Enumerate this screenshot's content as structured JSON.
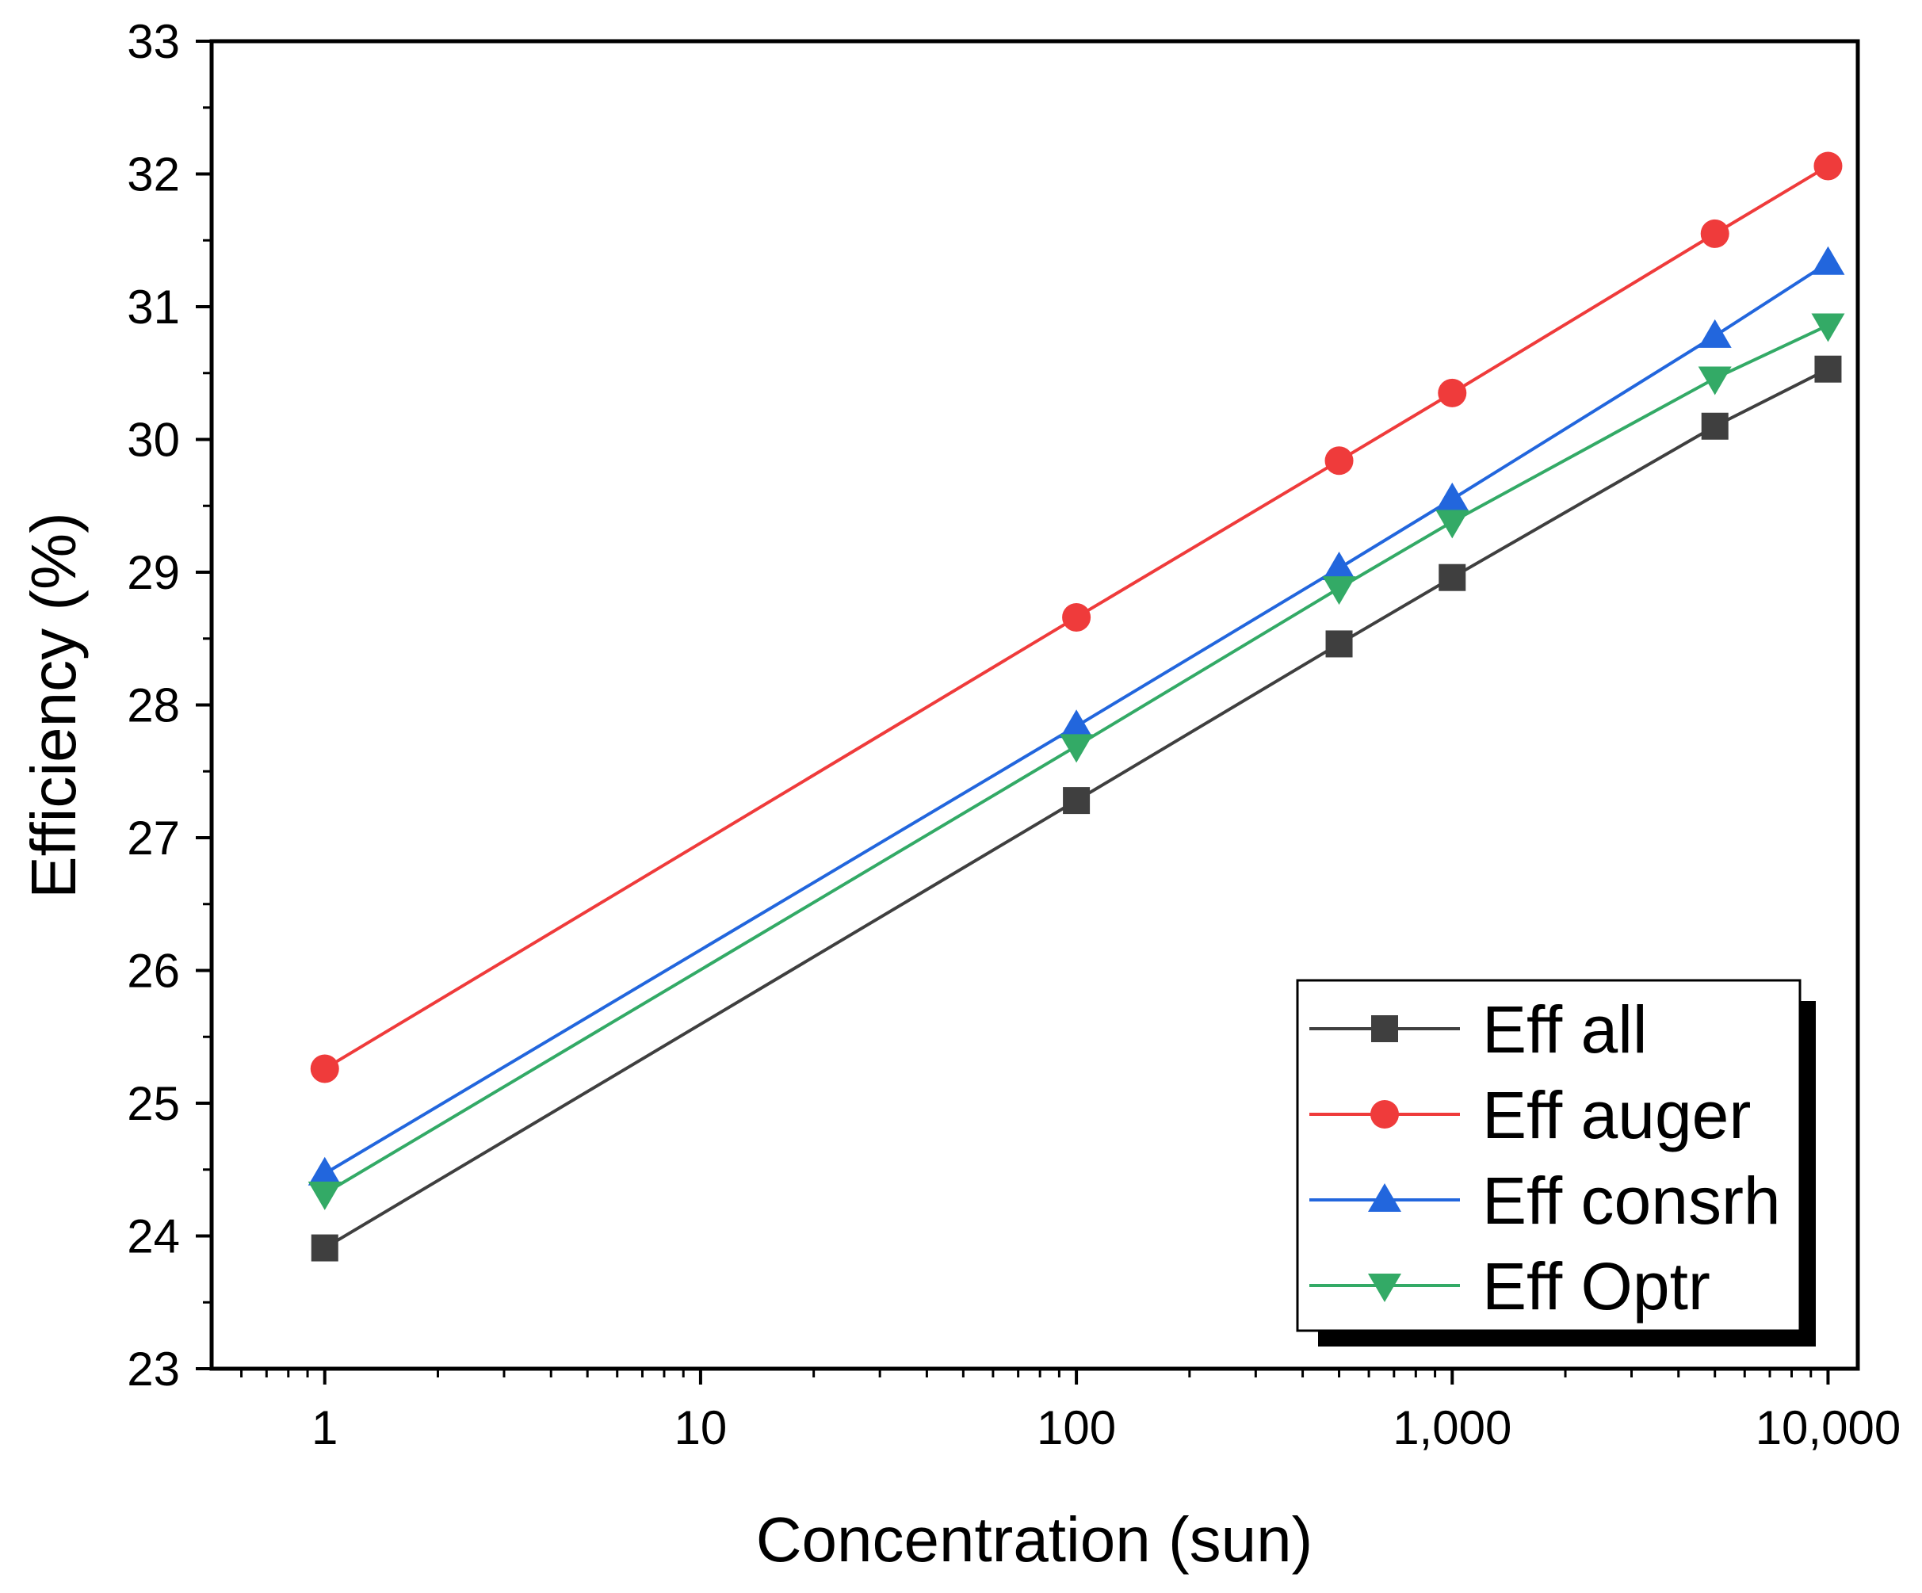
{
  "chart_data": {
    "type": "line",
    "title": "",
    "xlabel": "Concentration (sun)",
    "ylabel": "Efficiency (%)",
    "xscale": "log",
    "xlim": [
      0.5,
      12000
    ],
    "ylim": [
      23,
      33
    ],
    "x": [
      1,
      100,
      500,
      1000,
      5000,
      10000
    ],
    "x_ticks": [
      1,
      10,
      100,
      1000,
      10000
    ],
    "x_tick_labels": [
      "1",
      "10",
      "100",
      "1,000",
      "10,000"
    ],
    "y_ticks": [
      23,
      24,
      25,
      26,
      27,
      28,
      29,
      30,
      31,
      32,
      33
    ],
    "y_tick_labels": [
      "23",
      "24",
      "25",
      "26",
      "27",
      "28",
      "29",
      "30",
      "31",
      "32",
      "33"
    ],
    "grid": false,
    "legend_position": "bottom-right",
    "series": [
      {
        "name": "Eff all",
        "marker": "square",
        "color": "#3f3f3f",
        "values": [
          23.91,
          27.28,
          28.46,
          28.96,
          30.1,
          30.53
        ]
      },
      {
        "name": "Eff auger",
        "marker": "circle",
        "color": "#ef3b3b",
        "values": [
          25.26,
          28.66,
          29.84,
          30.35,
          31.55,
          32.06
        ]
      },
      {
        "name": "Eff consrh",
        "marker": "triangle-up",
        "color": "#2266dd",
        "values": [
          24.47,
          27.84,
          29.03,
          29.55,
          30.78,
          31.33
        ]
      },
      {
        "name": "Eff Optr",
        "marker": "triangle-down",
        "color": "#33aa66",
        "values": [
          24.32,
          27.69,
          28.88,
          29.38,
          30.46,
          30.86
        ]
      }
    ]
  }
}
